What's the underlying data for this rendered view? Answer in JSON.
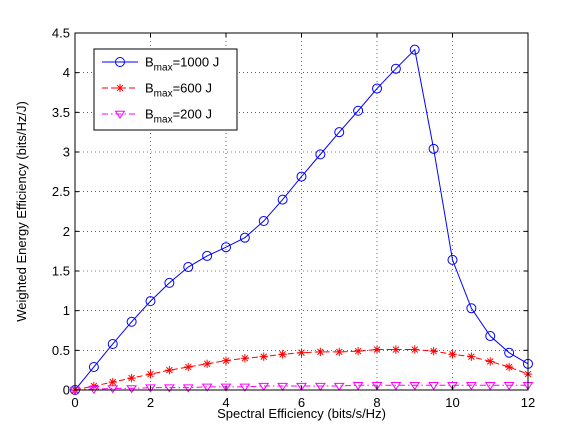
{
  "chart_data": {
    "type": "line",
    "title": "",
    "xlabel": "Spectral Efficiency (bits/s/Hz)",
    "ylabel": "Weighted Energy Efficiency (bits/Hz/J)",
    "xlim": [
      0,
      12
    ],
    "ylim": [
      0,
      4.5
    ],
    "xticks": [
      0,
      2,
      4,
      6,
      8,
      10,
      12
    ],
    "yticks": [
      0,
      0.5,
      1,
      1.5,
      2,
      2.5,
      3,
      3.5,
      4,
      4.5
    ],
    "grid": true,
    "legend_position": "top-left",
    "series": [
      {
        "name": "B_max=1000 J",
        "legend_main": "B",
        "legend_sub": "max",
        "legend_rest": "=1000 J",
        "color": "#0000ff",
        "line_style": "solid",
        "marker": "circle",
        "x": [
          0,
          0.5,
          1,
          1.5,
          2,
          2.5,
          3,
          3.5,
          4,
          4.5,
          5,
          5.5,
          6,
          6.5,
          7,
          7.5,
          8,
          8.5,
          9,
          9.5,
          10,
          10.5,
          11,
          11.5,
          12
        ],
        "y": [
          0,
          0.29,
          0.58,
          0.86,
          1.12,
          1.35,
          1.55,
          1.69,
          1.8,
          1.92,
          2.13,
          2.4,
          2.69,
          2.97,
          3.25,
          3.52,
          3.8,
          4.05,
          4.29,
          3.04,
          1.64,
          1.03,
          0.68,
          0.47,
          0.33
        ]
      },
      {
        "name": "B_max=600 J",
        "legend_main": "B",
        "legend_sub": "max",
        "legend_rest": "=600 J",
        "color": "#ff0000",
        "line_style": "dashed",
        "marker": "asterisk",
        "x": [
          0,
          0.5,
          1,
          1.5,
          2,
          2.5,
          3,
          3.5,
          4,
          4.5,
          5,
          5.5,
          6,
          6.5,
          7,
          7.5,
          8,
          8.5,
          9,
          9.5,
          10,
          10.5,
          11,
          11.5,
          12
        ],
        "y": [
          0,
          0.05,
          0.1,
          0.15,
          0.2,
          0.25,
          0.29,
          0.33,
          0.37,
          0.4,
          0.42,
          0.45,
          0.47,
          0.48,
          0.48,
          0.49,
          0.51,
          0.51,
          0.51,
          0.49,
          0.45,
          0.42,
          0.36,
          0.29,
          0.2
        ]
      },
      {
        "name": "B_max=200 J",
        "legend_main": "B",
        "legend_sub": "max",
        "legend_rest": "=200 J",
        "color": "#ff00ff",
        "line_style": "dashdot",
        "marker": "triangle-down",
        "x": [
          0,
          0.5,
          1,
          1.5,
          2,
          2.5,
          3,
          3.5,
          4,
          4.5,
          5,
          5.5,
          6,
          6.5,
          7,
          7.5,
          8,
          8.5,
          9,
          9.5,
          10,
          10.5,
          11,
          11.5,
          12
        ],
        "y": [
          0,
          0.01,
          0.02,
          0.02,
          0.03,
          0.03,
          0.03,
          0.04,
          0.04,
          0.04,
          0.05,
          0.05,
          0.05,
          0.05,
          0.05,
          0.06,
          0.06,
          0.06,
          0.06,
          0.06,
          0.06,
          0.06,
          0.06,
          0.06,
          0.06
        ]
      }
    ]
  }
}
